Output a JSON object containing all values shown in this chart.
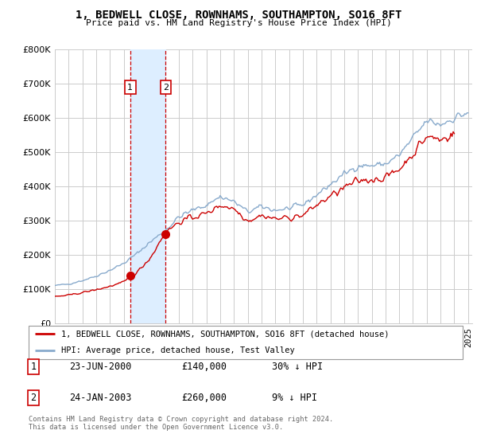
{
  "title": "1, BEDWELL CLOSE, ROWNHAMS, SOUTHAMPTON, SO16 8FT",
  "subtitle": "Price paid vs. HM Land Registry's House Price Index (HPI)",
  "background_color": "#ffffff",
  "plot_bg_color": "#ffffff",
  "grid_color": "#cccccc",
  "shade_color": "#ddeeff",
  "red_color": "#cc0000",
  "blue_color": "#88aacc",
  "ylim": [
    0,
    800000
  ],
  "yticks": [
    0,
    100000,
    200000,
    300000,
    400000,
    500000,
    600000,
    700000,
    800000
  ],
  "xlim_min": 1995.0,
  "xlim_max": 2025.3,
  "trans1_x": 2000.47,
  "trans2_x": 2003.05,
  "trans1_y": 140000,
  "trans2_y": 260000,
  "legend_line1": "1, BEDWELL CLOSE, ROWNHAMS, SOUTHAMPTON, SO16 8FT (detached house)",
  "legend_line2": "HPI: Average price, detached house, Test Valley",
  "row1_num": "1",
  "row1_date": "23-JUN-2000",
  "row1_price": "£140,000",
  "row1_hpi": "30% ↓ HPI",
  "row2_num": "2",
  "row2_date": "24-JAN-2003",
  "row2_price": "£260,000",
  "row2_hpi": "9% ↓ HPI",
  "footnote1": "Contains HM Land Registry data © Crown copyright and database right 2024.",
  "footnote2": "This data is licensed under the Open Government Licence v3.0."
}
